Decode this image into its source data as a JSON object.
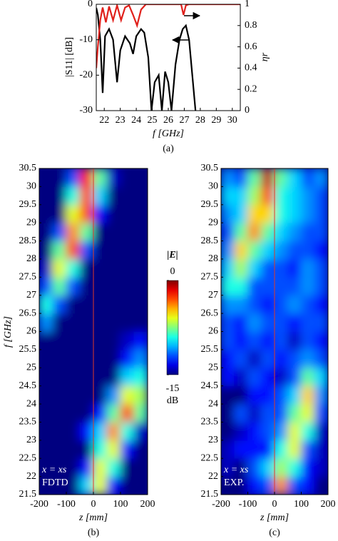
{
  "chart_data": [
    {
      "type": "line",
      "panel_label": "(a)",
      "xlabel": "f [GHz]",
      "ylabel": "|S11| [dB]",
      "y2label": "ηr",
      "xlim": [
        21.5,
        30.5
      ],
      "xticks": [
        22,
        23,
        24,
        25,
        26,
        27,
        28,
        29,
        30
      ],
      "ylim": [
        -30,
        0
      ],
      "yticks": [
        0,
        -10,
        -20,
        -30
      ],
      "y2lim": [
        0,
        1
      ],
      "y2ticks": [
        0,
        0.2,
        0.4,
        0.6,
        0.8,
        1
      ],
      "series": [
        {
          "color": "#000000",
          "x": [
            21.5,
            21.6,
            21.75,
            21.9,
            22.05,
            22.3,
            22.55,
            22.8,
            23.0,
            23.3,
            23.6,
            23.8,
            24.0,
            24.3,
            24.5,
            24.75,
            24.95,
            25.15,
            25.4,
            25.6,
            25.8,
            26.0,
            26.2,
            26.45,
            26.7,
            26.9,
            27.1,
            27.3,
            27.5,
            27.7
          ],
          "values": [
            -1,
            -3,
            -10,
            -25,
            -9,
            -7,
            -10,
            -22,
            -13,
            -9,
            -11,
            -14,
            -9,
            -7,
            -8,
            -15,
            -30,
            -22,
            -20,
            -30,
            -19,
            -22,
            -30,
            -17,
            -10,
            -7,
            -6,
            -10,
            -20,
            -30
          ]
        },
        {
          "color": "#e0201b",
          "axis": "y2",
          "x": [
            21.5,
            21.6,
            21.75,
            21.9,
            22.1,
            22.3,
            22.55,
            22.8,
            23.05,
            23.3,
            23.55,
            23.8,
            24.05,
            24.3,
            24.6,
            25.0,
            26.0,
            26.8,
            26.95,
            27.1,
            27.3,
            28.5,
            30.5
          ],
          "values": [
            0.4,
            0.6,
            0.85,
            0.97,
            0.83,
            0.98,
            0.85,
            0.99,
            0.85,
            0.97,
            0.99,
            0.9,
            0.8,
            0.95,
            1,
            1,
            1,
            1,
            0.9,
            0.99,
            1,
            1,
            1
          ]
        }
      ]
    },
    {
      "type": "heatmap",
      "panel_label": "(b)",
      "xlabel": "z [mm]",
      "ylabel": "f [GHz]",
      "annotations": [
        "x = xs",
        "FDTD"
      ],
      "xlim": [
        -200,
        200
      ],
      "xticks": [
        -200,
        -100,
        0,
        100,
        200
      ],
      "ylim": [
        21.5,
        30.5
      ],
      "yticks": [
        21.5,
        22,
        22.5,
        23,
        23.5,
        24,
        24.5,
        25,
        25.5,
        26,
        26.5,
        27,
        27.5,
        28,
        28.5,
        29,
        29.5,
        30,
        30.5
      ],
      "clim": [
        -15,
        0
      ],
      "marker_line": {
        "x": 0,
        "color": "#e03a2a"
      },
      "colorbar": {
        "title": "|E|",
        "ticks": [
          0,
          -15
        ],
        "unit": "dB"
      },
      "values": [
        [
          -15,
          -15,
          -15,
          -10,
          -6,
          -13,
          -15,
          -15
        ],
        [
          -15,
          -15,
          -15,
          -13,
          -6,
          -9,
          -15,
          -15
        ],
        [
          -15,
          -15,
          -15,
          -15,
          -9,
          -6,
          -13,
          -15
        ],
        [
          -15,
          -15,
          -15,
          -13,
          -10,
          -4,
          -9,
          -14
        ],
        [
          -15,
          -15,
          -15,
          -15,
          -13,
          -8,
          -3,
          -8
        ],
        [
          -15,
          -15,
          -15,
          -15,
          -15,
          -11,
          -6,
          -7
        ],
        [
          -15,
          -15,
          -15,
          -15,
          -15,
          -15,
          -10,
          -9
        ],
        [
          -15,
          -15,
          -15,
          -15,
          -15,
          -15,
          -13,
          -11
        ],
        [
          -15,
          -15,
          -15,
          -15,
          -15,
          -15,
          -14,
          -13
        ],
        [
          -11,
          -15,
          -15,
          -15,
          -15,
          -15,
          -15,
          -15
        ],
        [
          -9,
          -12,
          -15,
          -15,
          -15,
          -15,
          -15,
          -15
        ],
        [
          -12,
          -8,
          -12,
          -15,
          -15,
          -15,
          -15,
          -15
        ],
        [
          -14,
          -6,
          -9,
          -15,
          -15,
          -15,
          -15,
          -15
        ],
        [
          -15,
          -8,
          -3,
          -12,
          -15,
          -15,
          -15,
          -15
        ],
        [
          -15,
          -12,
          -4,
          -8,
          -15,
          -15,
          -15,
          -15
        ],
        [
          -15,
          -15,
          -6,
          -3,
          -13,
          -15,
          -15,
          -15
        ],
        [
          -15,
          -15,
          -9,
          -3,
          -10,
          -15,
          -15,
          -15
        ],
        [
          -15,
          -15,
          -12,
          -2,
          -8,
          -14,
          -15,
          -15
        ]
      ]
    },
    {
      "type": "heatmap",
      "panel_label": "(c)",
      "xlabel": "z [mm]",
      "annotations": [
        "x = xs",
        "EXP."
      ],
      "xlim": [
        -200,
        200
      ],
      "xticks": [
        -200,
        -100,
        0,
        100,
        200
      ],
      "ylim": [
        21.5,
        30.5
      ],
      "yticks": [
        21.5,
        22,
        22.5,
        23,
        23.5,
        24,
        24.5,
        25,
        25.5,
        26,
        26.5,
        27,
        27.5,
        28,
        28.5,
        29,
        29.5,
        30,
        30.5
      ],
      "clim": [
        -15,
        0
      ],
      "marker_line": {
        "x": 0,
        "color": "#e03a2a"
      },
      "values": [
        [
          -15,
          -15,
          -13,
          -12,
          -4,
          -12,
          -13,
          -15
        ],
        [
          -14,
          -15,
          -12,
          -10,
          -7,
          -9,
          -13,
          -14
        ],
        [
          -14,
          -13,
          -13,
          -13,
          -9,
          -6,
          -12,
          -14
        ],
        [
          -15,
          -14,
          -13,
          -12,
          -11,
          -6,
          -9,
          -14
        ],
        [
          -15,
          -12,
          -14,
          -12,
          -12,
          -8,
          -6,
          -12
        ],
        [
          -15,
          -15,
          -13,
          -13,
          -12,
          -10,
          -5,
          -11
        ],
        [
          -13,
          -14,
          -12,
          -13,
          -14,
          -12,
          -8,
          -10
        ],
        [
          -13,
          -12,
          -14,
          -12,
          -13,
          -12,
          -11,
          -12
        ],
        [
          -12,
          -13,
          -12,
          -13,
          -12,
          -14,
          -12,
          -13
        ],
        [
          -12,
          -13,
          -11,
          -12,
          -12,
          -13,
          -12,
          -12
        ],
        [
          -11,
          -11,
          -12,
          -13,
          -12,
          -11,
          -12,
          -13
        ],
        [
          -9,
          -9,
          -12,
          -12,
          -12,
          -12,
          -11,
          -12
        ],
        [
          -10,
          -7,
          -10,
          -12,
          -12,
          -13,
          -11,
          -12
        ],
        [
          -11,
          -5,
          -8,
          -10,
          -11,
          -12,
          -12,
          -13
        ],
        [
          -12,
          -8,
          -4,
          -8,
          -10,
          -11,
          -12,
          -12
        ],
        [
          -11,
          -10,
          -5,
          -5,
          -9,
          -10,
          -11,
          -12
        ],
        [
          -10,
          -10,
          -7,
          -3,
          -9,
          -10,
          -11,
          -12
        ],
        [
          -11,
          -12,
          -8,
          -1,
          -8,
          -10,
          -12,
          -11
        ]
      ]
    }
  ]
}
